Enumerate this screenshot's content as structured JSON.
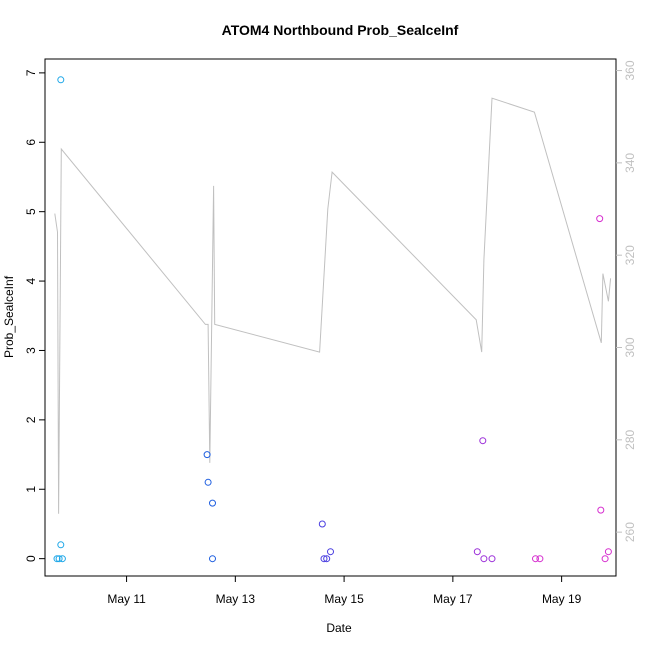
{
  "chart_data": {
    "type": "scatter",
    "title": "ATOM4 Northbound Prob_SealceInf",
    "xlabel": "Date",
    "ylabel": "Prob_SealceInf",
    "x_ticks": [
      "May 11",
      "May 13",
      "May 15",
      "May 17",
      "May 19"
    ],
    "y_ticks": [
      "0",
      "1",
      "2",
      "3",
      "4",
      "5",
      "6",
      "7"
    ],
    "y_right_ticks": [
      "260",
      "280",
      "300",
      "320",
      "340",
      "360"
    ],
    "x_range_days": [
      9.5,
      20.0
    ],
    "ylim": [
      -0.25,
      7.2
    ],
    "y_right_lim": [
      250.5,
      362.5
    ],
    "grid": false,
    "point_colors": {
      "cyan": "#1ea7e8",
      "blue": "#1f5fe0",
      "indigo": "#4a3ee0",
      "purple": "#9b2fd9",
      "magenta": "#d62fcf"
    },
    "line_color": "#c0c0c0",
    "points": [
      {
        "day": 9.72,
        "value": 0.0,
        "color": "cyan"
      },
      {
        "day": 9.76,
        "value": 0.0,
        "color": "cyan"
      },
      {
        "day": 9.79,
        "value": 6.9,
        "color": "cyan"
      },
      {
        "day": 9.79,
        "value": 0.2,
        "color": "cyan"
      },
      {
        "day": 9.82,
        "value": 0.0,
        "color": "cyan"
      },
      {
        "day": 12.48,
        "value": 1.5,
        "color": "blue"
      },
      {
        "day": 12.5,
        "value": 1.1,
        "color": "blue"
      },
      {
        "day": 12.58,
        "value": 0.8,
        "color": "blue"
      },
      {
        "day": 12.58,
        "value": 0.0,
        "color": "blue"
      },
      {
        "day": 14.6,
        "value": 0.5,
        "color": "indigo"
      },
      {
        "day": 14.63,
        "value": 0.0,
        "color": "indigo"
      },
      {
        "day": 14.68,
        "value": 0.0,
        "color": "indigo"
      },
      {
        "day": 14.75,
        "value": 0.1,
        "color": "indigo"
      },
      {
        "day": 17.45,
        "value": 0.1,
        "color": "purple"
      },
      {
        "day": 17.55,
        "value": 1.7,
        "color": "purple"
      },
      {
        "day": 17.57,
        "value": 0.0,
        "color": "purple"
      },
      {
        "day": 17.72,
        "value": 0.0,
        "color": "purple"
      },
      {
        "day": 18.52,
        "value": 0.0,
        "color": "magenta"
      },
      {
        "day": 18.6,
        "value": 0.0,
        "color": "magenta"
      },
      {
        "day": 19.7,
        "value": 4.9,
        "color": "magenta"
      },
      {
        "day": 19.72,
        "value": 0.7,
        "color": "magenta"
      },
      {
        "day": 19.8,
        "value": 0.0,
        "color": "magenta"
      },
      {
        "day": 19.86,
        "value": 0.1,
        "color": "magenta"
      }
    ],
    "line_series": [
      {
        "day": 9.68,
        "value": 329
      },
      {
        "day": 9.73,
        "value": 325
      },
      {
        "day": 9.75,
        "value": 264
      },
      {
        "day": 9.8,
        "value": 343
      },
      {
        "day": 12.45,
        "value": 305
      },
      {
        "day": 12.5,
        "value": 305
      },
      {
        "day": 12.53,
        "value": 275
      },
      {
        "day": 12.6,
        "value": 335
      },
      {
        "day": 12.62,
        "value": 305
      },
      {
        "day": 14.55,
        "value": 299
      },
      {
        "day": 14.7,
        "value": 330
      },
      {
        "day": 14.78,
        "value": 338
      },
      {
        "day": 17.43,
        "value": 306
      },
      {
        "day": 17.53,
        "value": 299
      },
      {
        "day": 17.57,
        "value": 319
      },
      {
        "day": 17.72,
        "value": 354
      },
      {
        "day": 18.5,
        "value": 351
      },
      {
        "day": 19.73,
        "value": 301
      },
      {
        "day": 19.76,
        "value": 316
      },
      {
        "day": 19.86,
        "value": 310
      },
      {
        "day": 19.9,
        "value": 315
      }
    ]
  }
}
